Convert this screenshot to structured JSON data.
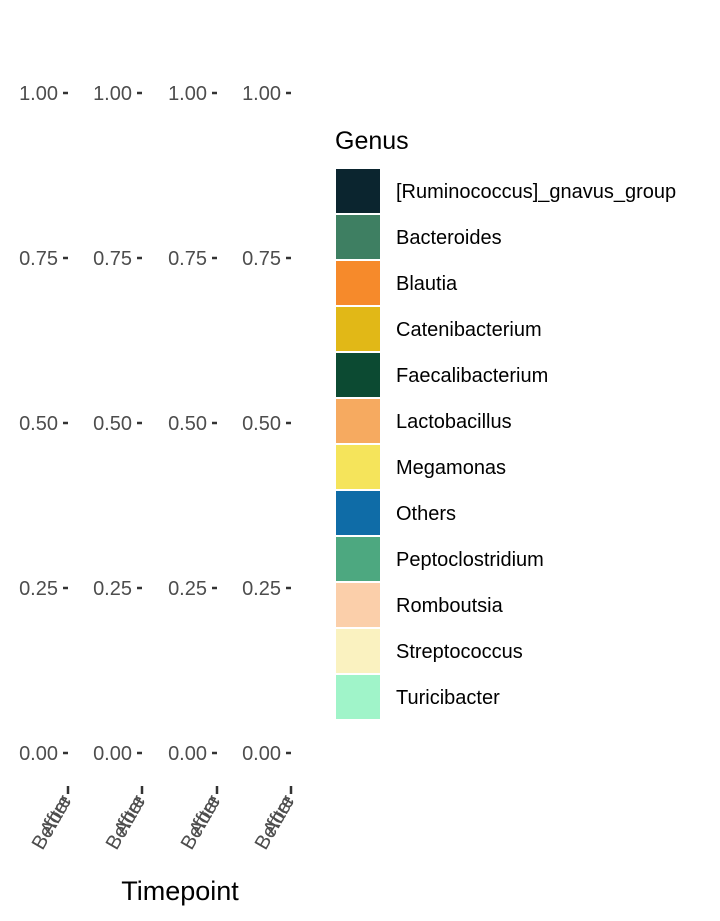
{
  "chart_data": {
    "type": "bar",
    "stacked": true,
    "facets": 4,
    "categories": [
      "Before",
      "After"
    ],
    "y_ticks": [
      "0.00",
      "0.25",
      "0.50",
      "0.75",
      "1.00"
    ],
    "ylim": [
      0,
      1
    ],
    "xlabel": "Timepoint",
    "ylabel": "",
    "grid": false,
    "legend": {
      "title": "Genus",
      "position": "right",
      "entries": [
        {
          "name": "[Ruminococcus]_gnavus_group",
          "color": "#0b252f"
        },
        {
          "name": "Bacteroides",
          "color": "#3e7f62"
        },
        {
          "name": "Blautia",
          "color": "#f68a2b"
        },
        {
          "name": "Catenibacterium",
          "color": "#e1b817"
        },
        {
          "name": "Faecalibacterium",
          "color": "#0c4a32"
        },
        {
          "name": "Lactobacillus",
          "color": "#f6aa60"
        },
        {
          "name": "Megamonas",
          "color": "#f5e45b"
        },
        {
          "name": "Others",
          "color": "#0f6ca7"
        },
        {
          "name": "Peptoclostridium",
          "color": "#4da880"
        },
        {
          "name": "Romboutsia",
          "color": "#fbcfaa"
        },
        {
          "name": "Streptococcus",
          "color": "#faf2c0"
        },
        {
          "name": "Turicibacter",
          "color": "#a0f4c9"
        }
      ]
    },
    "series": []
  }
}
